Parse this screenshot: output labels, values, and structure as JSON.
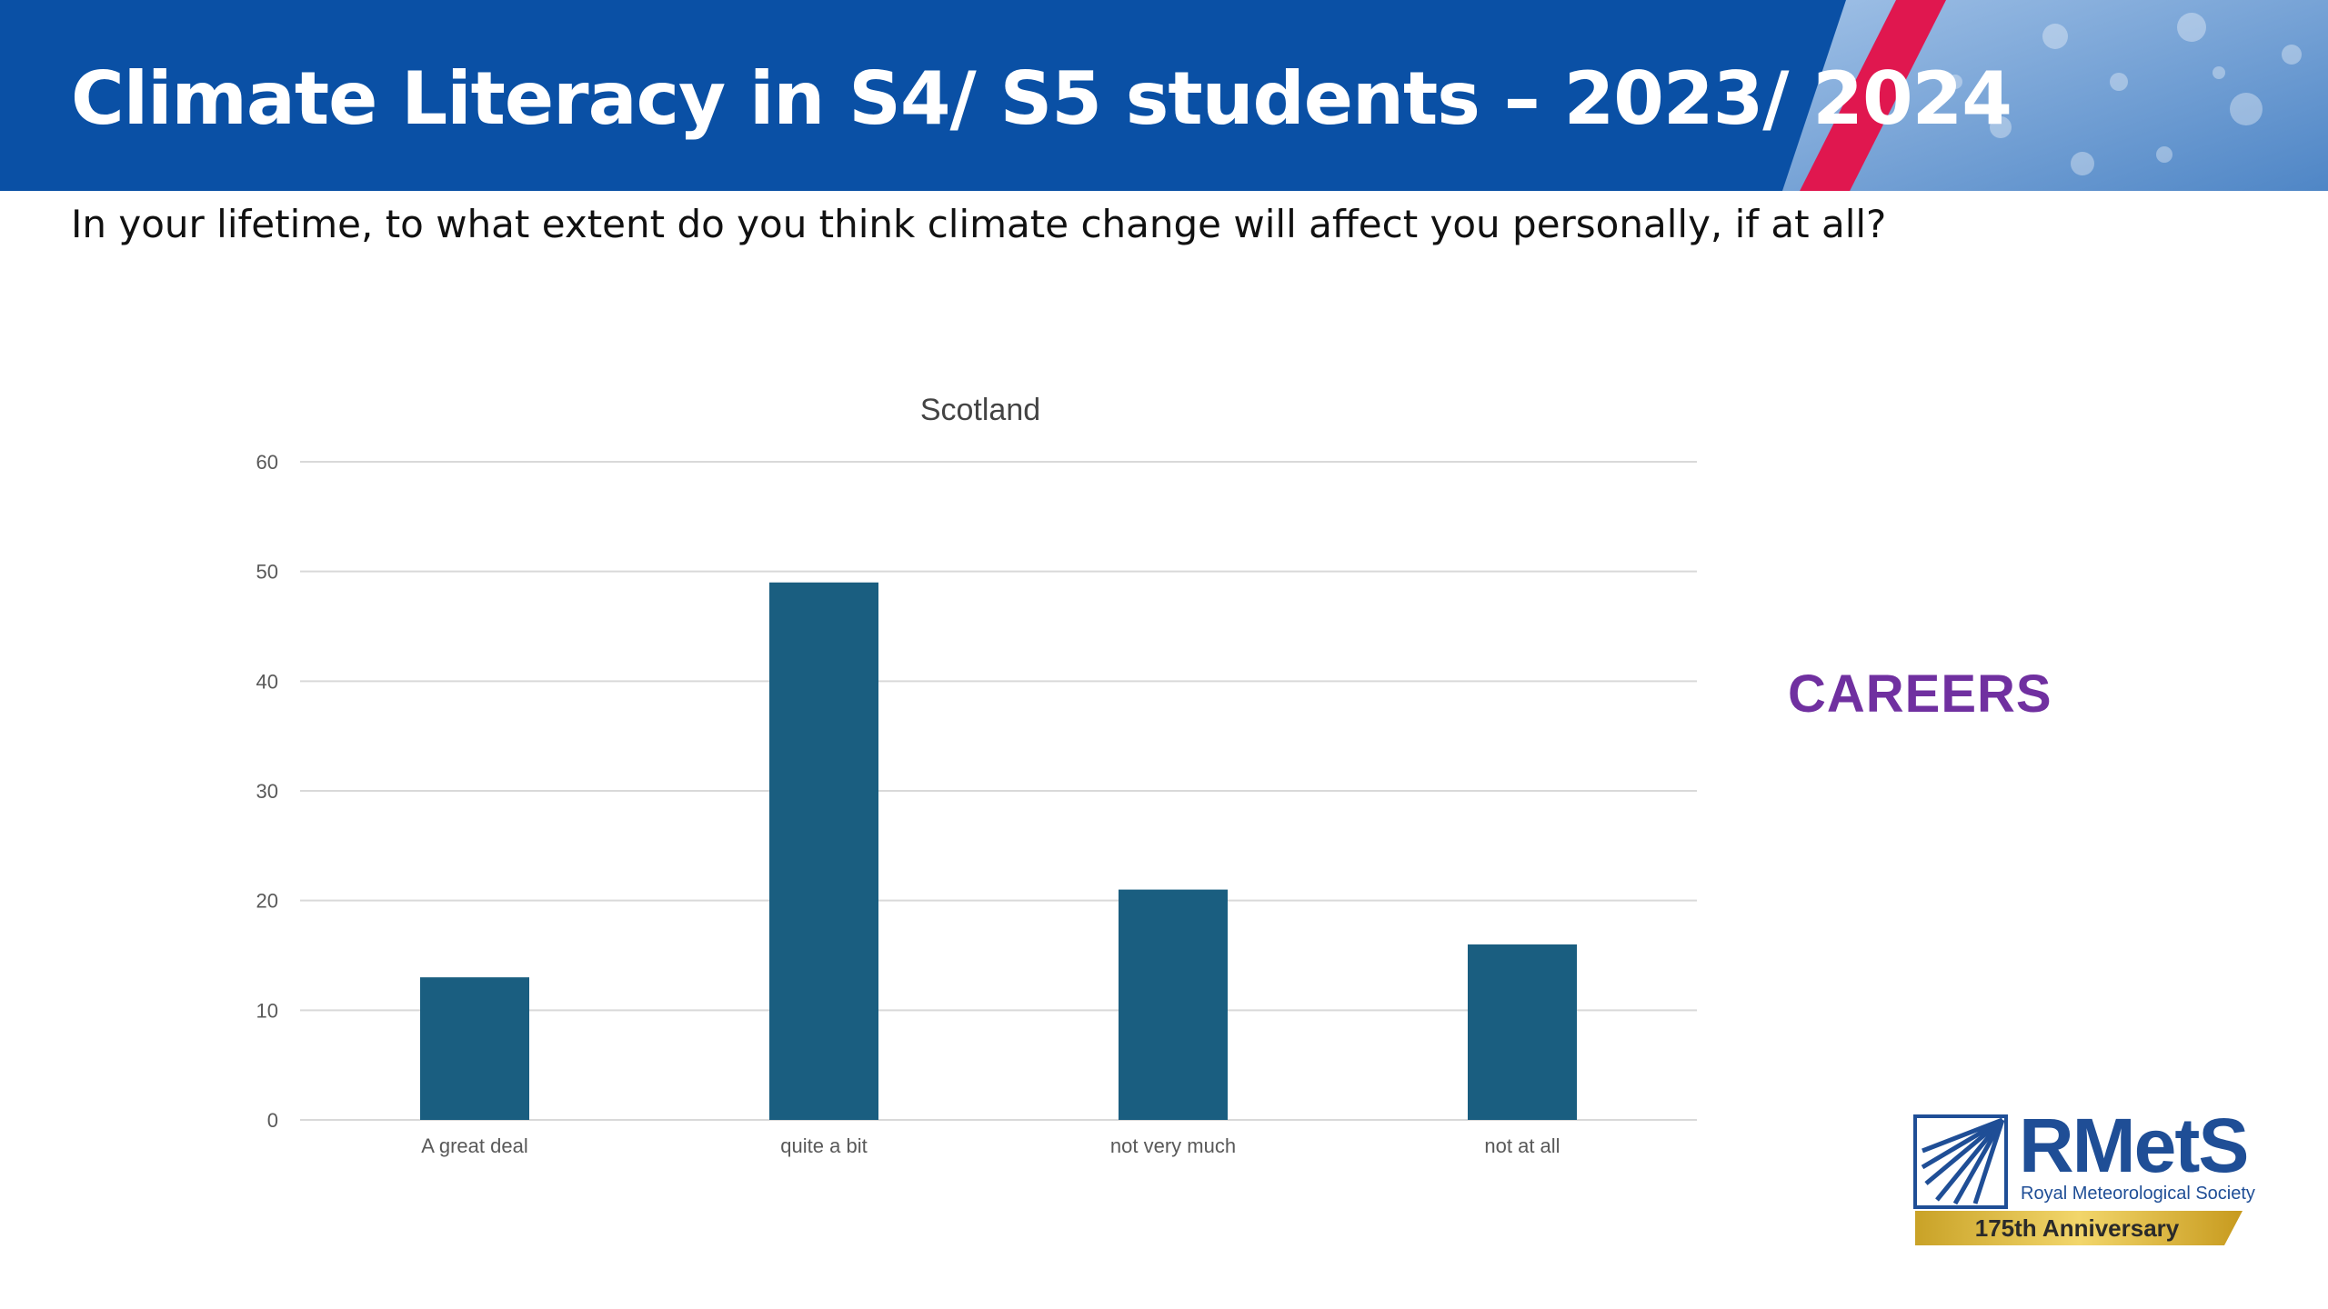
{
  "slide": {
    "title": "Climate Literacy in S4/ S5 students – 2023/ 2024",
    "subtitle": "In your lifetime, to what extent do you think climate change will affect you personally, if at all?",
    "side_label": "CAREERS"
  },
  "logo": {
    "name": "RMetS",
    "subtitle": "Royal Meteorological Society",
    "anniversary": "175th Anniversary"
  },
  "colors": {
    "header_blue": "#0a50a5",
    "accent_red": "#e0174f",
    "bar": "#1a5e80",
    "careers": "#7030a0"
  },
  "chart_data": {
    "type": "bar",
    "title": "Scotland",
    "categories": [
      "A great deal",
      "quite a bit",
      "not very much",
      "not at all"
    ],
    "values": [
      13,
      49,
      21,
      16
    ],
    "xlabel": "",
    "ylabel": "",
    "ylim": [
      0,
      60
    ],
    "yticks": [
      0,
      10,
      20,
      30,
      40,
      50,
      60
    ],
    "grid": true,
    "legend": "none"
  }
}
